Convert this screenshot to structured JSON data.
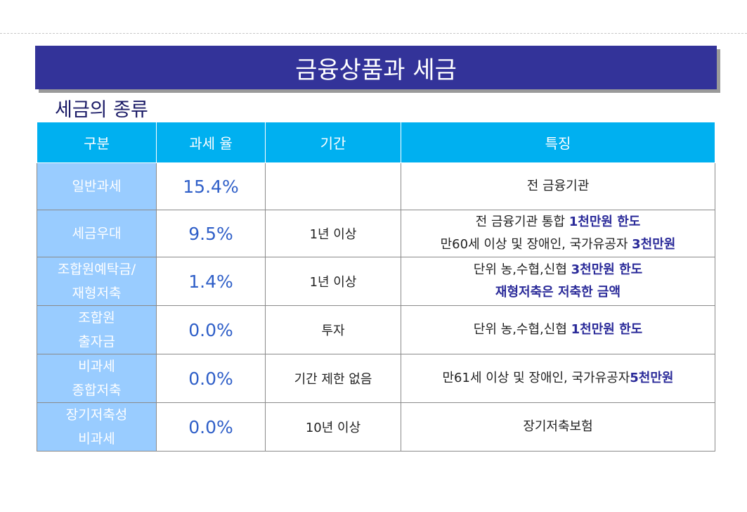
{
  "header": {
    "title": "금융상품과 세금",
    "subtitle": "세금의 종류"
  },
  "table": {
    "columns": [
      "구분",
      "과세 율",
      "기간",
      "특징"
    ],
    "rows": [
      {
        "category": [
          "일반과세"
        ],
        "rate": "15.4%",
        "period": null,
        "feature": [
          [
            {
              "text": "전 금융기관",
              "bold": false
            }
          ]
        ]
      },
      {
        "category": [
          "세금우대"
        ],
        "rate": "9.5%",
        "period": "1년 이상",
        "feature": [
          [
            {
              "text": "전 금융기관 통합 ",
              "bold": false
            },
            {
              "text": "1천만원 한도",
              "bold": true
            }
          ],
          [
            {
              "text": "만60세 이상 및 장애인, 국가유공자 ",
              "bold": false
            },
            {
              "text": "3천만원",
              "bold": true
            }
          ]
        ]
      },
      {
        "category": [
          "조합원예탁금/",
          "재형저축"
        ],
        "rate": "1.4%",
        "period": "1년 이상",
        "feature": [
          [
            {
              "text": "단위 농,수협,신협 ",
              "bold": false
            },
            {
              "text": "3천만원 한도",
              "bold": true
            }
          ],
          [
            {
              "text": "재형저축은 저축한 금액",
              "bold": true
            }
          ]
        ]
      },
      {
        "category": [
          "조합원",
          "출자금"
        ],
        "rate": "0.0%",
        "period": "투자",
        "feature": [
          [
            {
              "text": "단위 농,수협,신협 ",
              "bold": false
            },
            {
              "text": "1천만원 한도",
              "bold": true
            }
          ]
        ]
      },
      {
        "category": [
          "비과세",
          "종합저축"
        ],
        "rate": "0.0%",
        "period": "기간 제한 없음",
        "feature": [
          [
            {
              "text": "만61세 이상 및 장애인, 국가유공자",
              "bold": false
            },
            {
              "text": "5천만원",
              "bold": true
            }
          ]
        ]
      },
      {
        "category": [
          "장기저축성",
          "비과세"
        ],
        "rate": "0.0%",
        "period": "10년 이상",
        "feature": [
          [
            {
              "text": "장기저축보험",
              "bold": false
            }
          ]
        ]
      }
    ]
  }
}
